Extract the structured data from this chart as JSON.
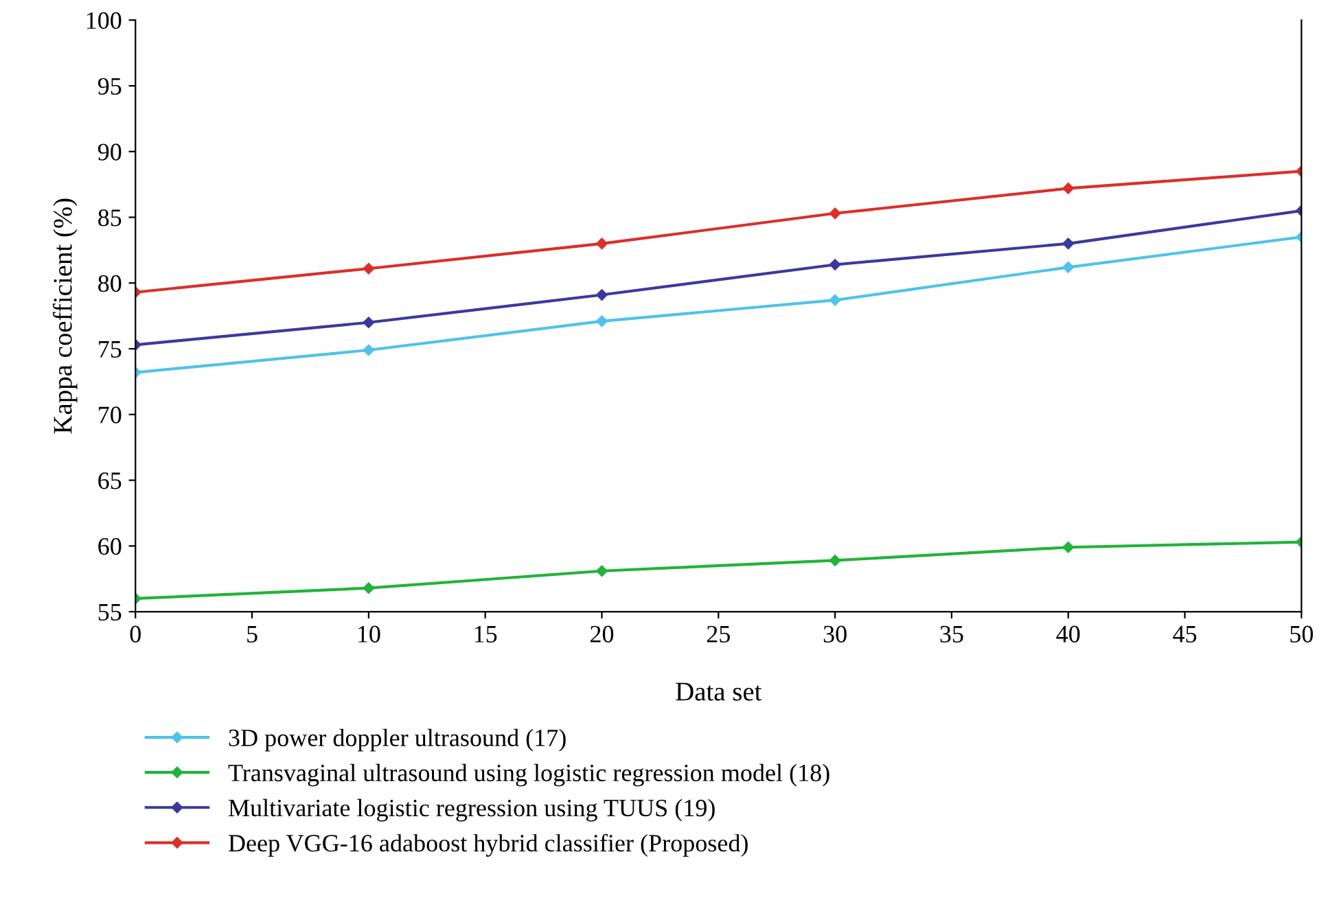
{
  "chart_data": {
    "type": "line",
    "xlabel": "Data set",
    "ylabel": "Kappa coefficient (%)",
    "x": [
      0,
      10,
      20,
      30,
      40,
      50
    ],
    "series": [
      {
        "name": "3D power doppler ultrasound (17)",
        "color": "#4fc3e8",
        "values": [
          73.2,
          74.9,
          77.1,
          78.7,
          81.2,
          83.5
        ]
      },
      {
        "name": "Transvaginal ultrasound using logistic regression model (18)",
        "color": "#22b33a",
        "values": [
          56.0,
          56.8,
          58.1,
          58.9,
          59.9,
          60.3
        ]
      },
      {
        "name": "Multivariate logistic regression using TUUS (19)",
        "color": "#3a3a9c",
        "values": [
          75.3,
          77.0,
          79.1,
          81.4,
          83.0,
          85.5
        ]
      },
      {
        "name": "Deep VGG-16 adaboost hybrid classifier (Proposed)",
        "color": "#d9302a",
        "values": [
          79.3,
          81.1,
          83.0,
          85.3,
          87.2,
          88.5
        ]
      }
    ],
    "xlim": [
      0,
      50
    ],
    "xticks": [
      0,
      5,
      10,
      15,
      20,
      25,
      30,
      35,
      40,
      45,
      50
    ],
    "ylim": [
      55,
      100
    ],
    "yticks": [
      55,
      60,
      65,
      70,
      75,
      80,
      85,
      90,
      95,
      100
    ],
    "grid": false,
    "legend": "bottom",
    "marker": "diamond",
    "line_style": "solid"
  }
}
